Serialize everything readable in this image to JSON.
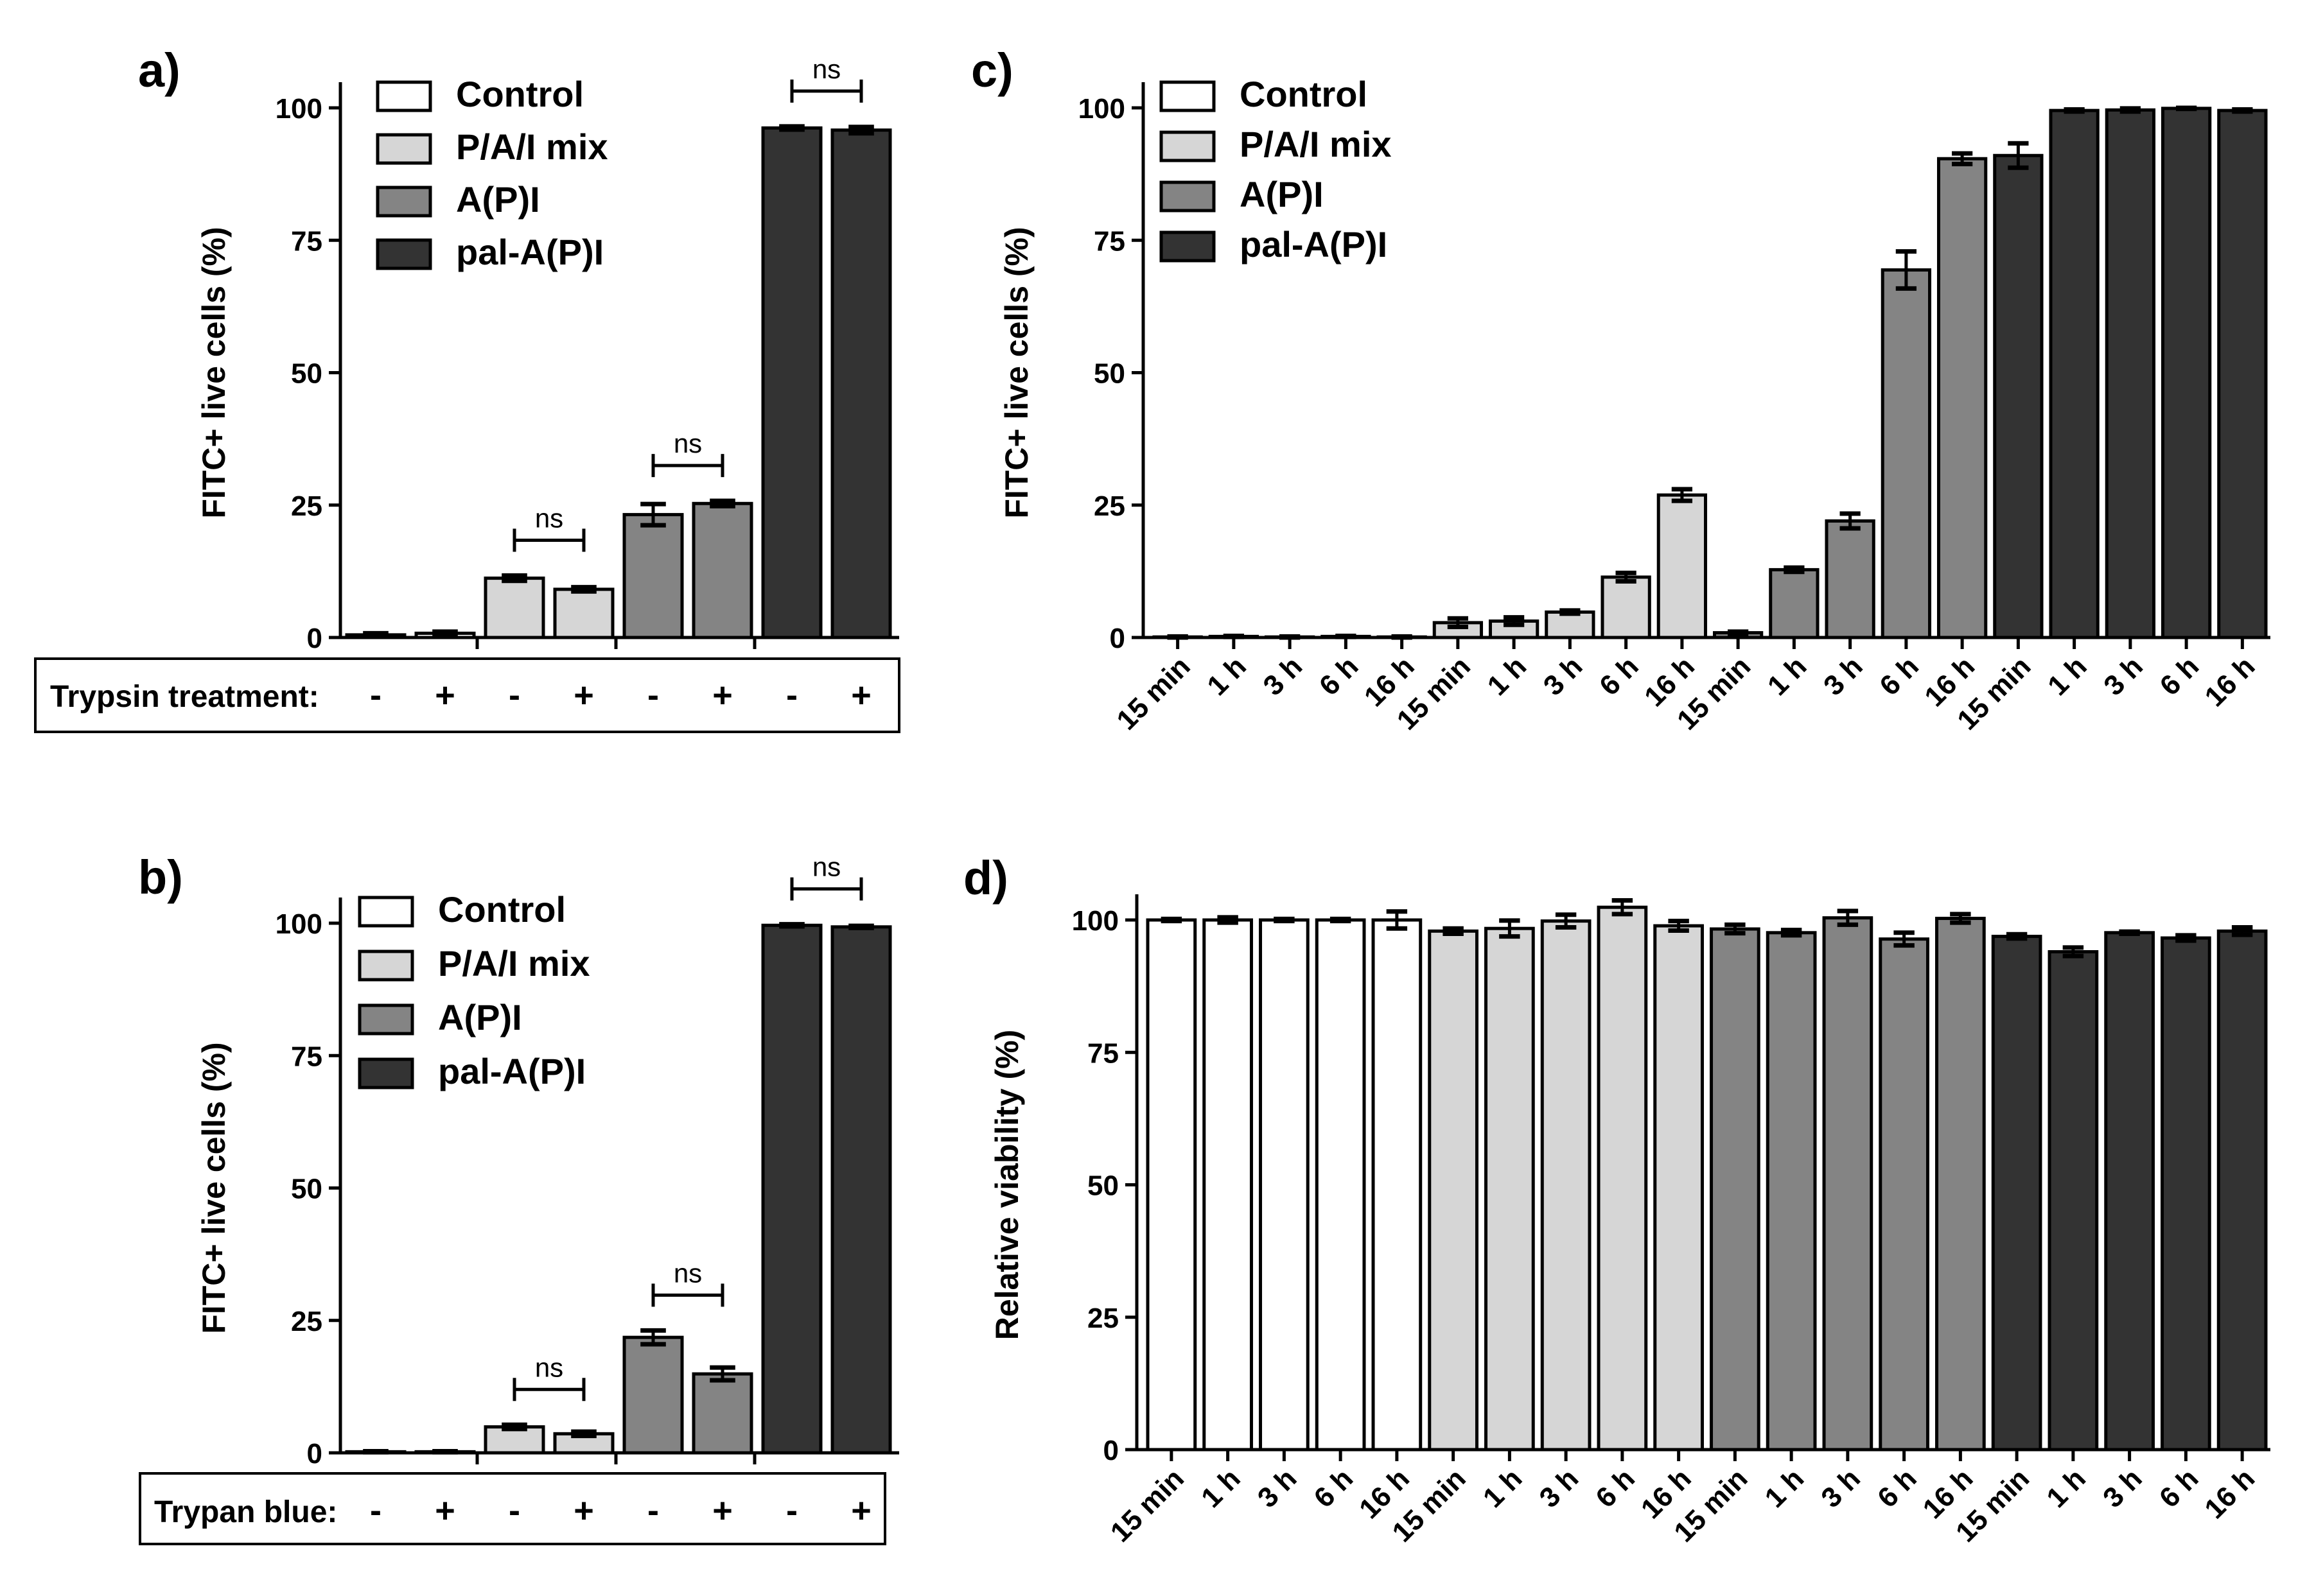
{
  "colors": {
    "Control": "#ffffff",
    "P/A/I mix": "#d6d6d6",
    "A(P)I": "#848484",
    "pal-A(P)I": "#333333",
    "stroke": "#000000"
  },
  "legend_labels": [
    "Control",
    "P/A/I mix",
    "A(P)I",
    "pal-A(P)I"
  ],
  "chart_data": [
    {
      "id": "a",
      "panel_label": "a)",
      "type": "bar",
      "ylabel": "FITC+ live cells (%)",
      "ylim": [
        0,
        100
      ],
      "yticks": [
        0,
        25,
        50,
        75,
        100
      ],
      "group_names": [
        "Control",
        "P/A/I mix",
        "A(P)I",
        "pal-A(P)I"
      ],
      "treatment_label": "Trypsin treatment:",
      "treatment_symbols": [
        "-",
        "+"
      ],
      "values": [
        [
          0.5,
          0.8
        ],
        [
          11.2,
          9.1
        ],
        [
          23.2,
          25.3
        ],
        [
          96.2,
          95.8
        ]
      ],
      "errors": [
        [
          0.3,
          0.3
        ],
        [
          0.5,
          0.4
        ],
        [
          2.0,
          0.5
        ],
        [
          0.3,
          0.6
        ]
      ],
      "significance": [
        {
          "group": 1,
          "label": "ns"
        },
        {
          "group": 2,
          "label": "ns"
        },
        {
          "group": 3,
          "label": "ns"
        }
      ],
      "legend": "top-left"
    },
    {
      "id": "b",
      "panel_label": "b)",
      "type": "bar",
      "ylabel": "FITC+ live cells (%)",
      "ylim": [
        0,
        100
      ],
      "yticks": [
        0,
        25,
        50,
        75,
        100
      ],
      "group_names": [
        "Control",
        "P/A/I mix",
        "A(P)I",
        "pal-A(P)I"
      ],
      "treatment_label": "Trypan blue:",
      "treatment_symbols": [
        "-",
        "+"
      ],
      "values": [
        [
          0.2,
          0.2
        ],
        [
          4.9,
          3.6
        ],
        [
          21.8,
          14.9
        ],
        [
          99.6,
          99.3
        ]
      ],
      "errors": [
        [
          0.1,
          0.1
        ],
        [
          0.4,
          0.4
        ],
        [
          1.3,
          1.2
        ],
        [
          0.2,
          0.2
        ]
      ],
      "significance": [
        {
          "group": 1,
          "label": "ns"
        },
        {
          "group": 2,
          "label": "ns"
        },
        {
          "group": 3,
          "label": "ns"
        }
      ],
      "legend": "top-left"
    },
    {
      "id": "c",
      "panel_label": "c)",
      "type": "bar",
      "ylabel": "FITC+ live cells (%)",
      "ylim": [
        0,
        100
      ],
      "yticks": [
        0,
        25,
        50,
        75,
        100
      ],
      "categories": [
        "15 min",
        "1 h",
        "3 h",
        "6 h",
        "16 h"
      ],
      "series": [
        {
          "name": "Control",
          "values": [
            0.1,
            0.2,
            0.1,
            0.2,
            0.1
          ],
          "errors": [
            0.1,
            0.1,
            0.1,
            0.1,
            0.1
          ]
        },
        {
          "name": "P/A/I mix",
          "values": [
            2.8,
            3.1,
            4.8,
            11.4,
            26.9
          ],
          "errors": [
            0.8,
            0.7,
            0.3,
            0.8,
            1.1
          ]
        },
        {
          "name": "A(P)I",
          "values": [
            0.9,
            12.8,
            22.0,
            69.4,
            90.4
          ],
          "errors": [
            0.2,
            0.4,
            1.4,
            3.5,
            1.0
          ]
        },
        {
          "name": "pal-A(P)I",
          "values": [
            91.0,
            99.5,
            99.6,
            99.9,
            99.5
          ],
          "errors": [
            2.3,
            0.2,
            0.3,
            0.1,
            0.2
          ]
        }
      ],
      "legend": "top-left"
    },
    {
      "id": "d",
      "panel_label": "d)",
      "type": "bar",
      "ylabel": "Relative viability (%)",
      "ylim": [
        0,
        100
      ],
      "yticks": [
        0,
        25,
        50,
        75,
        100
      ],
      "categories": [
        "15 min",
        "1 h",
        "3 h",
        "6 h",
        "16 h"
      ],
      "series": [
        {
          "name": "Control",
          "values": [
            100,
            100,
            100,
            100,
            100
          ],
          "errors": [
            0.2,
            0.5,
            0.2,
            0.2,
            1.6
          ]
        },
        {
          "name": "P/A/I mix",
          "values": [
            97.9,
            98.4,
            99.8,
            102.4,
            98.9
          ],
          "errors": [
            0.5,
            1.5,
            1.2,
            1.3,
            0.9
          ]
        },
        {
          "name": "A(P)I",
          "values": [
            98.3,
            97.6,
            100.4,
            96.4,
            100.3
          ],
          "errors": [
            0.8,
            0.5,
            1.3,
            1.2,
            0.8
          ]
        },
        {
          "name": "pal-A(P)I",
          "values": [
            96.9,
            94.0,
            97.6,
            96.6,
            97.9
          ],
          "errors": [
            0.4,
            0.8,
            0.2,
            0.5,
            0.7
          ]
        }
      ],
      "legend": "none"
    }
  ]
}
